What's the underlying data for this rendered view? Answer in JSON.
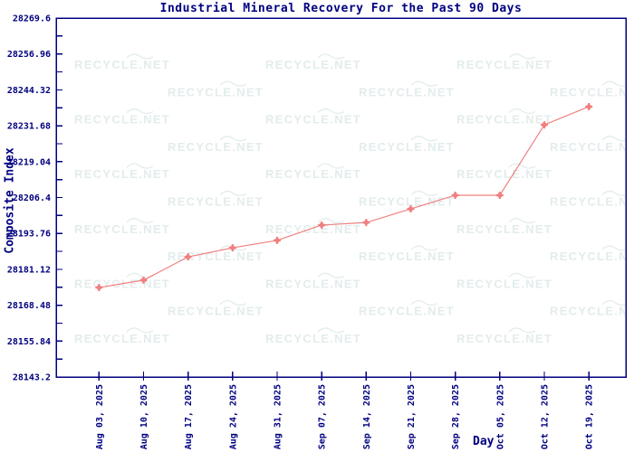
{
  "chart_data": {
    "type": "line",
    "title": "Industrial Mineral Recovery For the Past 90 Days",
    "xlabel": "Day",
    "ylabel": "Composite Index",
    "categories": [
      "Aug 03, 2025",
      "Aug 10, 2025",
      "Aug 17, 2025",
      "Aug 24, 2025",
      "Aug 31, 2025",
      "Sep 07, 2025",
      "Sep 14, 2025",
      "Sep 21, 2025",
      "Sep 28, 2025",
      "Oct 05, 2025",
      "Oct 12, 2025",
      "Oct 19, 2025"
    ],
    "values": [
      28174.7,
      28177.3,
      28185.5,
      28188.7,
      28191.3,
      28196.7,
      28197.6,
      28202.4,
      28207.2,
      28207.2,
      28232.0,
      28238.4
    ],
    "ylim": [
      28143.2,
      28269.6
    ],
    "yticks": [
      28143.2,
      28155.84,
      28168.48,
      28181.12,
      28193.76,
      28206.4,
      28219.04,
      28231.68,
      28244.32,
      28256.96,
      28269.6
    ],
    "grid": false,
    "legend": false,
    "line_color": "#F08080",
    "axis_color": "#000080",
    "text_color": "#000080"
  },
  "watermark": {
    "text": "RECYCLE.NET",
    "color": "#E3ECEC"
  }
}
